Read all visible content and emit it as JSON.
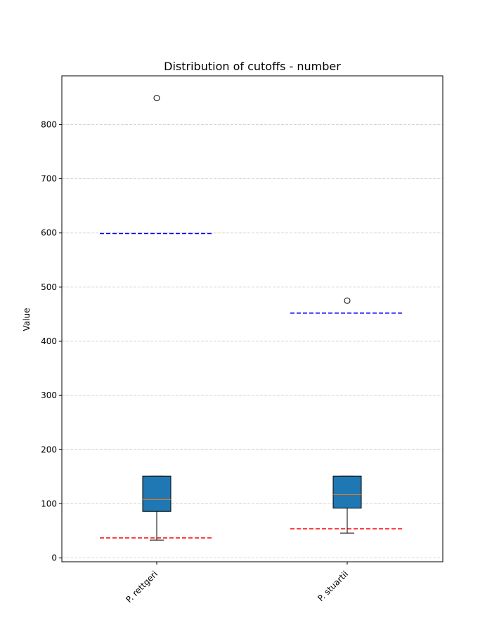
{
  "chart_data": {
    "type": "box",
    "title": "Distribution of cutoffs - number",
    "xlabel": "",
    "ylabel": "Value",
    "ylim": [
      -7,
      890
    ],
    "yticks": [
      0,
      100,
      200,
      300,
      400,
      500,
      600,
      700,
      800
    ],
    "grid": "y-dashed",
    "box_color": "#1f77b4",
    "median_color": "#ff7f0e",
    "categories": [
      "P. rettgeri",
      "P. stuartii"
    ],
    "boxes": [
      {
        "category": "P. rettgeri",
        "whisker_low": 33,
        "q1": 86,
        "median": 108,
        "q3": 151,
        "whisker_high": 151,
        "outliers": [
          849
        ],
        "reference_lines": [
          {
            "value": 599,
            "color": "#0000ff"
          },
          {
            "value": 37,
            "color": "#ff0000"
          }
        ]
      },
      {
        "category": "P. stuartii",
        "whisker_low": 46,
        "q1": 92,
        "median": 117,
        "q3": 151,
        "whisker_high": 151,
        "outliers": [
          475
        ],
        "reference_lines": [
          {
            "value": 452,
            "color": "#0000ff"
          },
          {
            "value": 54,
            "color": "#ff0000"
          }
        ]
      }
    ]
  }
}
